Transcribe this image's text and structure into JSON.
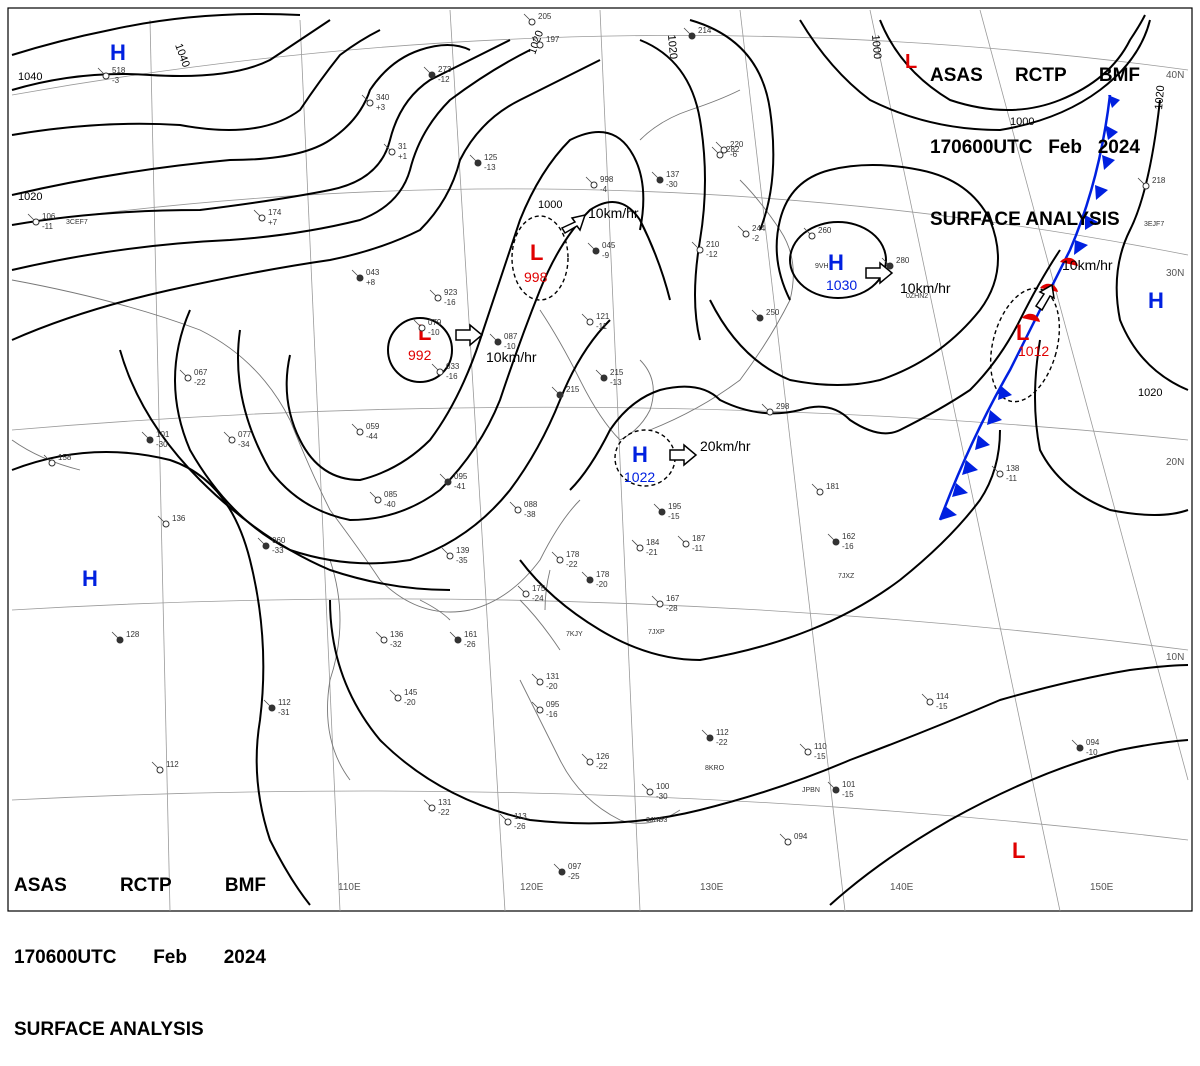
{
  "header": {
    "agency": [
      "ASAS",
      "RCTP",
      "BMF"
    ],
    "time": [
      "170600UTC",
      "Feb",
      "2024"
    ],
    "product": "SURFACE ANALYSIS"
  },
  "colors": {
    "low": "#e00000",
    "high": "#0020e0",
    "front_cold": "#0020e0",
    "front_warm": "#e00000",
    "line": "#000000",
    "grid": "#888888"
  },
  "longitude_labels": [
    "110E",
    "120E",
    "130E",
    "140E",
    "150E"
  ],
  "latitude_labels": [
    "40N",
    "30N",
    "20N",
    "10N"
  ],
  "isobar_labels": [
    "1040",
    "1040",
    "1020",
    "1000",
    "1020",
    "1020",
    "1000",
    "1000",
    "1020",
    "1020"
  ],
  "centers": [
    {
      "type": "H",
      "symbol": "H",
      "pressure": ""
    },
    {
      "type": "H",
      "symbol": "H",
      "pressure": ""
    },
    {
      "type": "L",
      "symbol": "L",
      "pressure": "998"
    },
    {
      "type": "L",
      "symbol": "L",
      "pressure": "992"
    },
    {
      "type": "H",
      "symbol": "H",
      "pressure": "1030"
    },
    {
      "type": "H",
      "symbol": "H",
      "pressure": "1022"
    },
    {
      "type": "L",
      "symbol": "L",
      "pressure": "1012"
    },
    {
      "type": "H",
      "symbol": "H",
      "pressure": ""
    },
    {
      "type": "L",
      "symbol": "L",
      "pressure": ""
    },
    {
      "type": "L",
      "symbol": "L",
      "pressure": ""
    }
  ],
  "motion_labels": [
    "10km/hr",
    "10km/hr",
    "10km/hr",
    "20km/hr",
    "10km/hr"
  ],
  "station_plots": [
    {
      "t": "273",
      "v": "-12"
    },
    {
      "t": "340",
      "v": "+3"
    },
    {
      "t": "31",
      "v": "+1"
    },
    {
      "t": "125",
      "v": "-13"
    },
    {
      "t": "106",
      "v": "-11"
    },
    {
      "t": "174",
      "v": "+7"
    },
    {
      "t": "043",
      "v": "+8"
    },
    {
      "t": "923",
      "v": "-16"
    },
    {
      "t": "079",
      "v": "-10"
    },
    {
      "t": "087",
      "v": "-10"
    },
    {
      "t": "067",
      "v": "-22"
    },
    {
      "t": "033",
      "v": "-16"
    },
    {
      "t": "101",
      "v": "-30"
    },
    {
      "t": "077",
      "v": "-34"
    },
    {
      "t": "059",
      "v": "-44"
    },
    {
      "t": "095",
      "v": "-41"
    },
    {
      "t": "085",
      "v": "-40"
    },
    {
      "t": "088",
      "v": "-38"
    },
    {
      "t": "060",
      "v": "-33"
    },
    {
      "t": "139",
      "v": "-35"
    },
    {
      "t": "178",
      "v": "-22"
    },
    {
      "t": "178",
      "v": "-20"
    },
    {
      "t": "184",
      "v": "-21"
    },
    {
      "t": "187",
      "v": "-11"
    },
    {
      "t": "195",
      "v": "-15"
    },
    {
      "t": "167",
      "v": "-28"
    },
    {
      "t": "175",
      "v": "-24"
    },
    {
      "t": "161",
      "v": "-26"
    },
    {
      "t": "136",
      "v": "-32"
    },
    {
      "t": "145",
      "v": "-20"
    },
    {
      "t": "112",
      "v": "-31"
    },
    {
      "t": "131",
      "v": "-20"
    },
    {
      "t": "095",
      "v": "-16"
    },
    {
      "t": "112",
      "v": "-22"
    },
    {
      "t": "126",
      "v": "-22"
    },
    {
      "t": "110",
      "v": "-15"
    },
    {
      "t": "101",
      "v": "-15"
    },
    {
      "t": "100",
      "v": "-30"
    },
    {
      "t": "114",
      "v": "-15"
    },
    {
      "t": "094",
      "v": "-10"
    },
    {
      "t": "131",
      "v": "-22"
    },
    {
      "t": "113",
      "v": "-26"
    },
    {
      "t": "097",
      "v": "-25"
    },
    {
      "t": "094",
      "v": ""
    },
    {
      "t": "138",
      "v": "-11"
    },
    {
      "t": "162",
      "v": "-16"
    },
    {
      "t": "181",
      "v": ""
    },
    {
      "t": "298",
      "v": ""
    },
    {
      "t": "250",
      "v": ""
    },
    {
      "t": "244",
      "v": "-2"
    },
    {
      "t": "260",
      "v": ""
    },
    {
      "t": "280",
      "v": ""
    },
    {
      "t": "218",
      "v": ""
    },
    {
      "t": "220",
      "v": "-6"
    },
    {
      "t": "215",
      "v": "-13"
    },
    {
      "t": "121",
      "v": "-11"
    },
    {
      "t": "210",
      "v": "-12"
    },
    {
      "t": "137",
      "v": "-30"
    },
    {
      "t": "158",
      "v": ""
    },
    {
      "t": "136",
      "v": ""
    },
    {
      "t": "128",
      "v": ""
    },
    {
      "t": "112",
      "v": ""
    },
    {
      "t": "998",
      "v": "-4"
    },
    {
      "t": "045",
      "v": "-9"
    },
    {
      "t": "518",
      "v": "-3"
    },
    {
      "t": "197",
      "v": ""
    },
    {
      "t": "214",
      "v": ""
    },
    {
      "t": "205",
      "v": ""
    },
    {
      "t": "282",
      "v": ""
    },
    {
      "t": "215",
      "v": ""
    }
  ],
  "station_ids": [
    "7JXZ",
    "7JXP",
    "7KJY",
    "JPBN",
    "9VH",
    "0ZHN2",
    "3JHD3",
    "3EJF7",
    "3CEF7",
    "8KRO"
  ]
}
